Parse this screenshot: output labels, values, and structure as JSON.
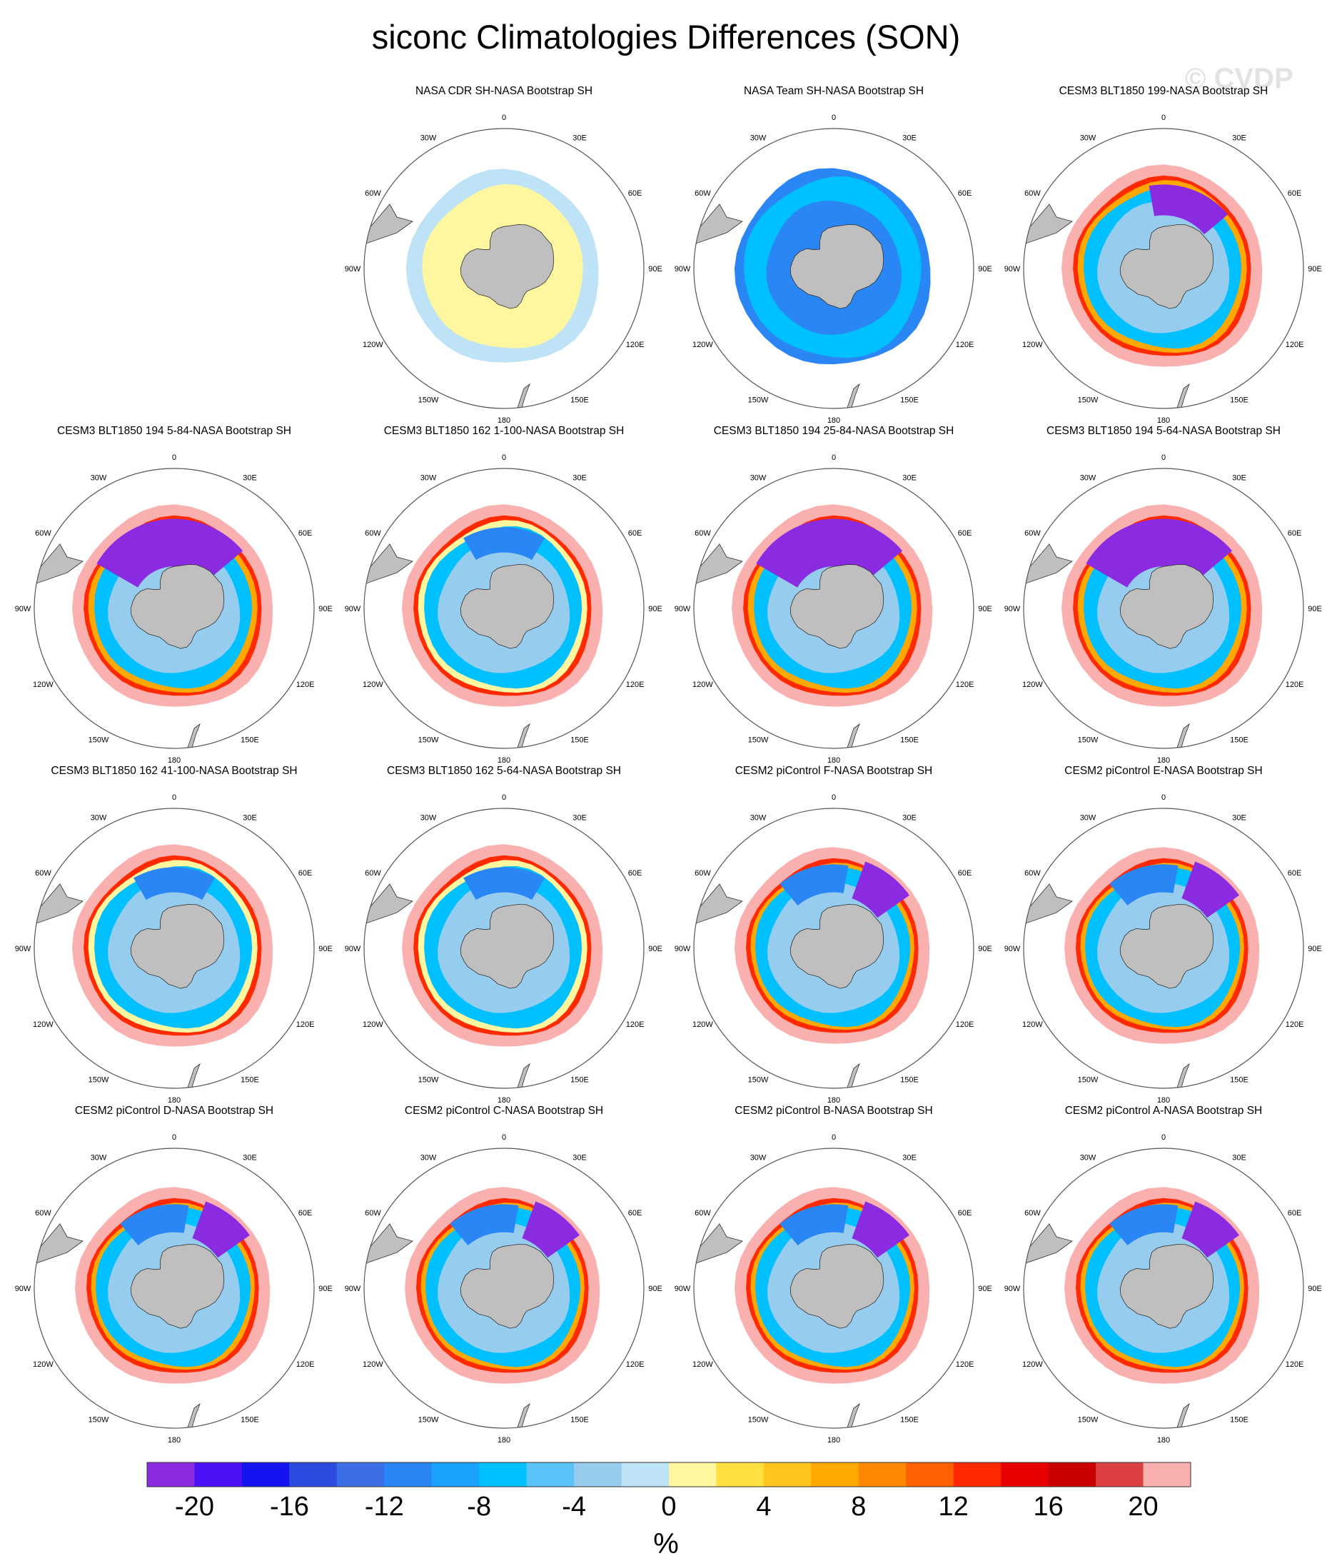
{
  "title": "siconc Climatologies Differences (SON)",
  "watermark": "© CVDP",
  "lon_labels": [
    "0",
    "30E",
    "60E",
    "90E",
    "120E",
    "150E",
    "180",
    "150W",
    "120W",
    "90W",
    "60W",
    "30W"
  ],
  "panels": [
    {
      "row": 0,
      "col": 1,
      "title": "NASA CDR SH-NASA Bootstrap SH",
      "pattern": "cdr"
    },
    {
      "row": 0,
      "col": 2,
      "title": "NASA Team SH-NASA Bootstrap SH",
      "pattern": "team"
    },
    {
      "row": 0,
      "col": 3,
      "title": "CESM3 BLT1850 199-NASA Bootstrap SH",
      "pattern": "cesm3"
    },
    {
      "row": 1,
      "col": 0,
      "title": "CESM3 BLT1850 194 5-84-NASA Bootstrap SH",
      "pattern": "cesm3_purple"
    },
    {
      "row": 1,
      "col": 1,
      "title": "CESM3 BLT1850 162 1-100-NASA Bootstrap SH",
      "pattern": "cesm3_red"
    },
    {
      "row": 1,
      "col": 2,
      "title": "CESM3 BLT1850 194 25-84-NASA Bootstrap SH",
      "pattern": "cesm3_purple"
    },
    {
      "row": 1,
      "col": 3,
      "title": "CESM3 BLT1850 194 5-64-NASA Bootstrap SH",
      "pattern": "cesm3_purple"
    },
    {
      "row": 2,
      "col": 0,
      "title": "CESM3 BLT1850 162 41-100-NASA Bootstrap SH",
      "pattern": "cesm3_red"
    },
    {
      "row": 2,
      "col": 1,
      "title": "CESM3 BLT1850 162 5-64-NASA Bootstrap SH",
      "pattern": "cesm3_red"
    },
    {
      "row": 2,
      "col": 2,
      "title": "CESM2 piControl F-NASA Bootstrap SH",
      "pattern": "cesm2"
    },
    {
      "row": 2,
      "col": 3,
      "title": "CESM2 piControl E-NASA Bootstrap SH",
      "pattern": "cesm2"
    },
    {
      "row": 3,
      "col": 0,
      "title": "CESM2 piControl D-NASA Bootstrap SH",
      "pattern": "cesm2"
    },
    {
      "row": 3,
      "col": 1,
      "title": "CESM2 piControl C-NASA Bootstrap SH",
      "pattern": "cesm2"
    },
    {
      "row": 3,
      "col": 2,
      "title": "CESM2 piControl B-NASA Bootstrap SH",
      "pattern": "cesm2"
    },
    {
      "row": 3,
      "col": 3,
      "title": "CESM2 piControl A-NASA Bootstrap SH",
      "pattern": "cesm2"
    }
  ],
  "colorbar": {
    "unit": "%",
    "colors": [
      "#8a2be2",
      "#4b10f5",
      "#1414f0",
      "#2e4be0",
      "#3c6fe6",
      "#2a86f4",
      "#1aa2ff",
      "#00c0ff",
      "#5ac4f8",
      "#96ccee",
      "#bee2f6",
      "#fff7a0",
      "#ffe040",
      "#ffc61e",
      "#ffa800",
      "#ff8800",
      "#ff6000",
      "#ff2a00",
      "#e80000",
      "#c80000",
      "#dc4040",
      "#fbb0b0"
    ],
    "tick_labels": [
      "-20",
      "-16",
      "-12",
      "-8",
      "-4",
      "0",
      "4",
      "8",
      "12",
      "16",
      "20"
    ]
  },
  "colors": {
    "land": "#bfbfbf",
    "coast": "#303030",
    "ring": "#555555"
  }
}
